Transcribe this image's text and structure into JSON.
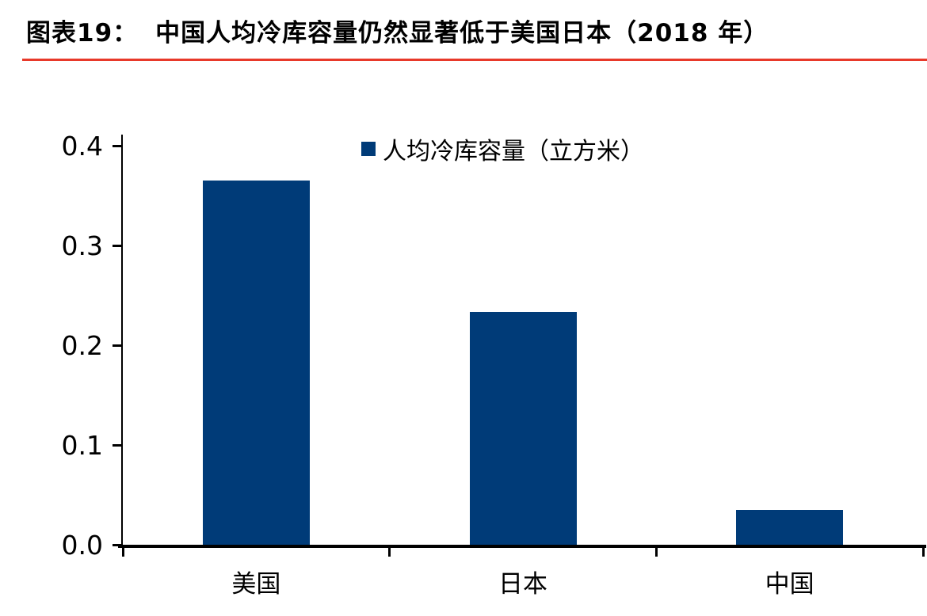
{
  "header": {
    "figure_label": "图表19：",
    "title": "中国人均冷库容量仍然显著低于美国日本（2018 年）"
  },
  "chart_data": {
    "type": "bar",
    "title": "图表19： 中国人均冷库容量仍然显著低于美国日本（2018 年）",
    "categories": [
      "美国",
      "日本",
      "中国"
    ],
    "values": [
      0.365,
      0.233,
      0.035
    ],
    "series_name": "人均冷库容量（立方米）",
    "xlabel": "",
    "ylabel": "",
    "ylim": [
      0,
      0.4
    ],
    "ytick_values": [
      0,
      0.1,
      0.2,
      0.3,
      0.4
    ],
    "ytick_labels": [
      "0.0",
      "0.1",
      "0.2",
      "0.3",
      "0.4"
    ],
    "grid": false,
    "legend_position": "top-center",
    "bar_color": "#003b78",
    "accent_red": "#e8392a",
    "axis_color": "#000000"
  }
}
